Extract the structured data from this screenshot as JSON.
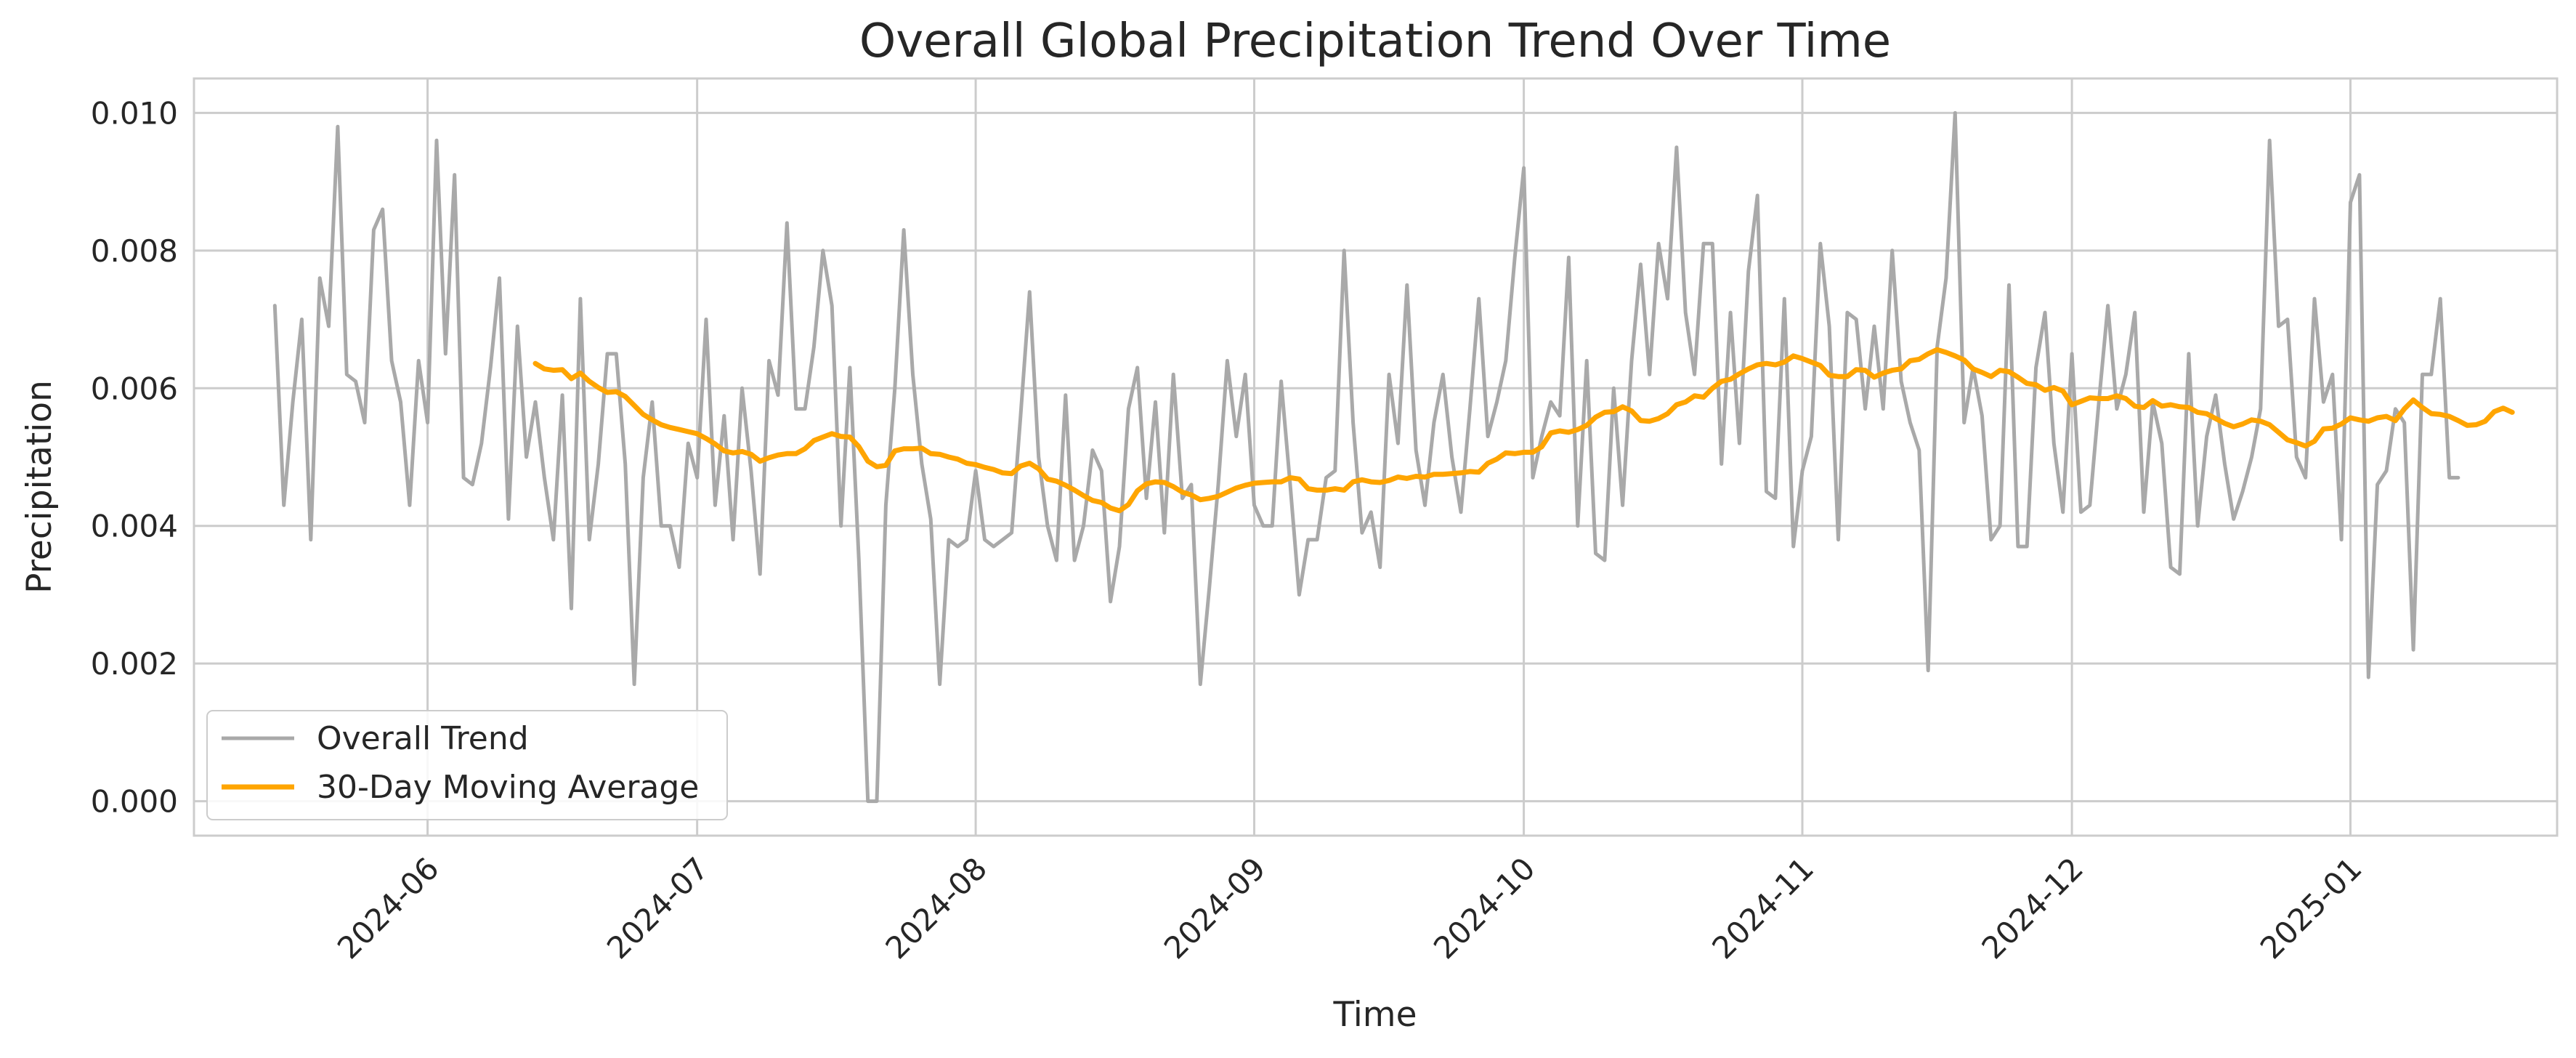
{
  "chart_data": {
    "type": "line",
    "title": "Overall Global Precipitation Trend Over Time",
    "xlabel": "Time",
    "ylabel": "Precipitation",
    "xlim": [
      "2024-05-06",
      "2025-01-24"
    ],
    "ylim": [
      -0.0005,
      0.0105
    ],
    "x_ticks": [
      "2024-06-01",
      "2024-07-01",
      "2024-08-01",
      "2024-09-01",
      "2024-10-01",
      "2024-11-01",
      "2024-12-01",
      "2025-01-01"
    ],
    "x_tick_labels": [
      "2024-06",
      "2024-07",
      "2024-08",
      "2024-09",
      "2024-10",
      "2024-11",
      "2024-12",
      "2025-01"
    ],
    "y_ticks": [
      0,
      0.002,
      0.004,
      0.006,
      0.008,
      0.01
    ],
    "y_tick_labels": [
      "0.000",
      "0.002",
      "0.004",
      "0.006",
      "0.008",
      "0.010"
    ],
    "grid": true,
    "legend": {
      "position": "lower-left",
      "entries": [
        "Overall Trend",
        "30-Day Moving Average"
      ]
    },
    "series": [
      {
        "name": "Overall Trend",
        "color": "#a9a9a9",
        "x_start": "2024-05-15",
        "values": [
          0.0072,
          0.0043,
          0.0058,
          0.007,
          0.0038,
          0.0076,
          0.0069,
          0.0098,
          0.0062,
          0.0061,
          0.0055,
          0.0083,
          0.0086,
          0.0064,
          0.0058,
          0.0043,
          0.0064,
          0.0055,
          0.0096,
          0.0065,
          0.0091,
          0.0047,
          0.0046,
          0.0052,
          0.0063,
          0.0076,
          0.0041,
          0.0069,
          0.005,
          0.0058,
          0.0047,
          0.0038,
          0.0059,
          0.0028,
          0.0073,
          0.0038,
          0.0049,
          0.0065,
          0.0065,
          0.0049,
          0.0017,
          0.0047,
          0.0058,
          0.004,
          0.004,
          0.0034,
          0.0052,
          0.0047,
          0.007,
          0.0043,
          0.0056,
          0.0038,
          0.006,
          0.0048,
          0.0033,
          0.0064,
          0.0059,
          0.0084,
          0.0057,
          0.0057,
          0.0066,
          0.008,
          0.0072,
          0.004,
          0.0063,
          0.0035,
          0.0,
          0.0,
          0.0043,
          0.006,
          0.0083,
          0.0062,
          0.0049,
          0.0041,
          0.0017,
          0.0038,
          0.0037,
          0.0038,
          0.0048,
          0.0038,
          0.0037,
          0.0038,
          0.0039,
          0.0056,
          0.0074,
          0.005,
          0.004,
          0.0035,
          0.0059,
          0.0035,
          0.004,
          0.0051,
          0.0048,
          0.0029,
          0.0037,
          0.0057,
          0.0063,
          0.0044,
          0.0058,
          0.0039,
          0.0062,
          0.0044,
          0.0046,
          0.0017,
          0.0031,
          0.0046,
          0.0064,
          0.0053,
          0.0062,
          0.0043,
          0.004,
          0.004,
          0.0061,
          0.0046,
          0.003,
          0.0038,
          0.0038,
          0.0047,
          0.0048,
          0.008,
          0.0055,
          0.0039,
          0.0042,
          0.0034,
          0.0062,
          0.0052,
          0.0075,
          0.0051,
          0.0043,
          0.0055,
          0.0062,
          0.005,
          0.0042,
          0.0057,
          0.0073,
          0.0053,
          0.0058,
          0.0064,
          0.0079,
          0.0092,
          0.0047,
          0.0053,
          0.0058,
          0.0056,
          0.0079,
          0.004,
          0.0064,
          0.0036,
          0.0035,
          0.006,
          0.0043,
          0.0064,
          0.0078,
          0.0062,
          0.0081,
          0.0073,
          0.0095,
          0.0071,
          0.0062,
          0.0081,
          0.0081,
          0.0049,
          0.0071,
          0.0052,
          0.0077,
          0.0088,
          0.0045,
          0.0044,
          0.0073,
          0.0037,
          0.0048,
          0.0053,
          0.0081,
          0.0069,
          0.0038,
          0.0071,
          0.007,
          0.0057,
          0.0069,
          0.0057,
          0.008,
          0.0061,
          0.0055,
          0.0051,
          0.0019,
          0.0066,
          0.0076,
          0.01,
          0.0055,
          0.0063,
          0.0056,
          0.0038,
          0.004,
          0.0075,
          0.0037,
          0.0037,
          0.0063,
          0.0071,
          0.0052,
          0.0042,
          0.0065,
          0.0042,
          0.0043,
          0.0058,
          0.0072,
          0.0057,
          0.0062,
          0.0071,
          0.0042,
          0.0058,
          0.0052,
          0.0034,
          0.0033,
          0.0065,
          0.004,
          0.0053,
          0.0059,
          0.0049,
          0.0041,
          0.0045,
          0.005,
          0.0057,
          0.0096,
          0.0069,
          0.007,
          0.005,
          0.0047,
          0.0073,
          0.0058,
          0.0062,
          0.0038,
          0.0087,
          0.0091,
          0.0018,
          0.0046,
          0.0048,
          0.0057,
          0.0055,
          0.0022,
          0.0062,
          0.0062,
          0.0073,
          0.0047,
          0.0047
        ]
      },
      {
        "name": "30-Day Moving Average",
        "color": "#ffa500",
        "x_start": "2024-06-13",
        "values": [
          0.00636,
          0.00628,
          0.00626,
          0.00627,
          0.00614,
          0.00622,
          0.0061,
          0.00601,
          0.00594,
          0.00595,
          0.00588,
          0.00575,
          0.00562,
          0.00554,
          0.00547,
          0.00543,
          0.0054,
          0.00537,
          0.00534,
          0.00527,
          0.00519,
          0.00509,
          0.00506,
          0.00508,
          0.00504,
          0.00494,
          0.00499,
          0.00503,
          0.00505,
          0.00505,
          0.00512,
          0.00524,
          0.00529,
          0.00534,
          0.0053,
          0.00529,
          0.00515,
          0.00494,
          0.00486,
          0.00488,
          0.00509,
          0.00512,
          0.00512,
          0.00513,
          0.00505,
          0.00504,
          0.005,
          0.00497,
          0.00491,
          0.00489,
          0.00485,
          0.00482,
          0.00477,
          0.00476,
          0.00487,
          0.00491,
          0.00483,
          0.00468,
          0.00465,
          0.00459,
          0.00452,
          0.00444,
          0.00437,
          0.00434,
          0.00426,
          0.00422,
          0.00431,
          0.00451,
          0.00461,
          0.00464,
          0.00463,
          0.00457,
          0.00449,
          0.00445,
          0.00438,
          0.0044,
          0.00443,
          0.00449,
          0.00455,
          0.00459,
          0.00462,
          0.00463,
          0.00464,
          0.00464,
          0.0047,
          0.00468,
          0.00454,
          0.00452,
          0.00452,
          0.00454,
          0.00452,
          0.00464,
          0.00467,
          0.00464,
          0.00463,
          0.00466,
          0.00471,
          0.00469,
          0.00472,
          0.00471,
          0.00475,
          0.00475,
          0.00476,
          0.00477,
          0.00479,
          0.00478,
          0.00491,
          0.00497,
          0.00506,
          0.00505,
          0.00507,
          0.00507,
          0.00515,
          0.00535,
          0.00538,
          0.00536,
          0.0054,
          0.00546,
          0.00558,
          0.00565,
          0.00566,
          0.00573,
          0.00567,
          0.00553,
          0.00552,
          0.00556,
          0.00563,
          0.00576,
          0.0058,
          0.00589,
          0.00587,
          0.006,
          0.0061,
          0.00613,
          0.00621,
          0.00628,
          0.00634,
          0.00636,
          0.00634,
          0.00638,
          0.00647,
          0.00643,
          0.00638,
          0.00633,
          0.00619,
          0.00617,
          0.00617,
          0.00627,
          0.00626,
          0.00616,
          0.00622,
          0.00626,
          0.00628,
          0.0064,
          0.00642,
          0.0065,
          0.00656,
          0.00652,
          0.00647,
          0.00641,
          0.00628,
          0.00623,
          0.00617,
          0.00626,
          0.00624,
          0.00616,
          0.00607,
          0.00605,
          0.00597,
          0.00601,
          0.00596,
          0.00576,
          0.00581,
          0.00586,
          0.00585,
          0.00585,
          0.00589,
          0.00585,
          0.00574,
          0.00572,
          0.00582,
          0.00574,
          0.00576,
          0.00573,
          0.00572,
          0.00565,
          0.00563,
          0.00556,
          0.00549,
          0.00544,
          0.00548,
          0.00554,
          0.00552,
          0.00547,
          0.00536,
          0.00525,
          0.00521,
          0.00516,
          0.00523,
          0.00541,
          0.00542,
          0.00548,
          0.00557,
          0.00554,
          0.00552,
          0.00557,
          0.00559,
          0.00553,
          0.0057,
          0.00583,
          0.00572,
          0.00563,
          0.00562,
          0.00559,
          0.00553,
          0.00546,
          0.00547,
          0.00552,
          0.00566,
          0.00571,
          0.00565
        ]
      }
    ]
  }
}
